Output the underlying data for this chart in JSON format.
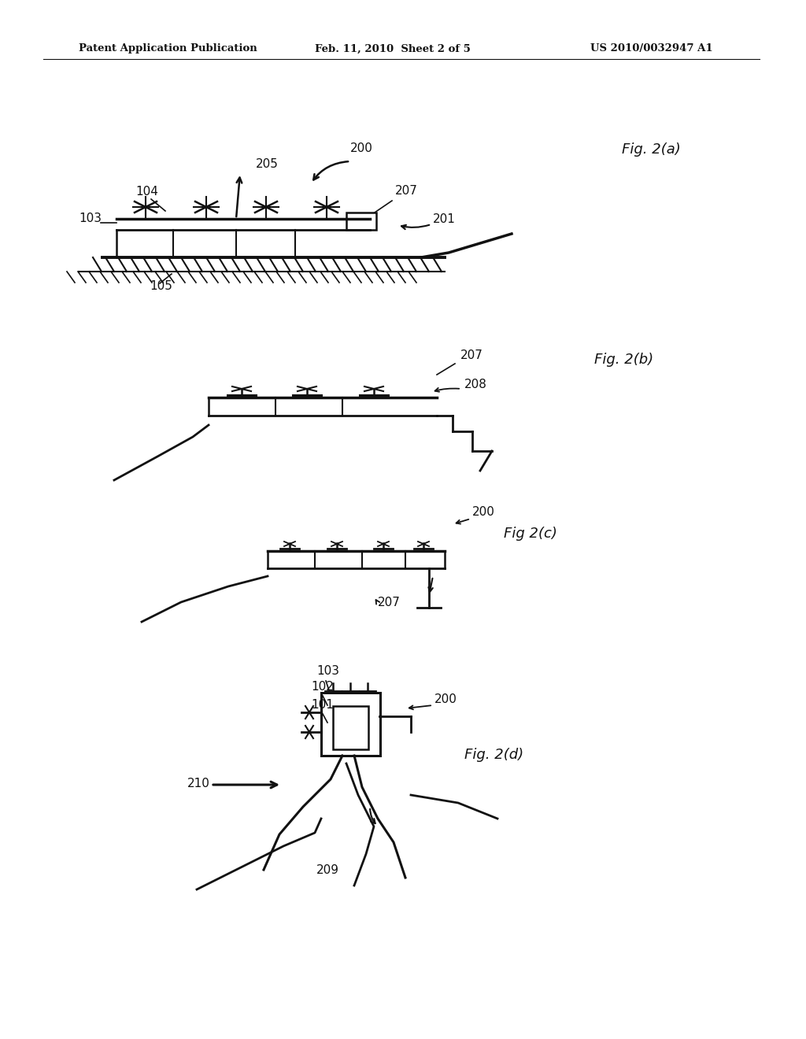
{
  "bg_color": "#ffffff",
  "header_left": "Patent Application Publication",
  "header_mid": "Feb. 11, 2010  Sheet 2 of 5",
  "header_right": "US 2010/0032947 A1",
  "text_color": "#111111",
  "line_color": "#111111",
  "sketch_color": "#1a1a1a"
}
